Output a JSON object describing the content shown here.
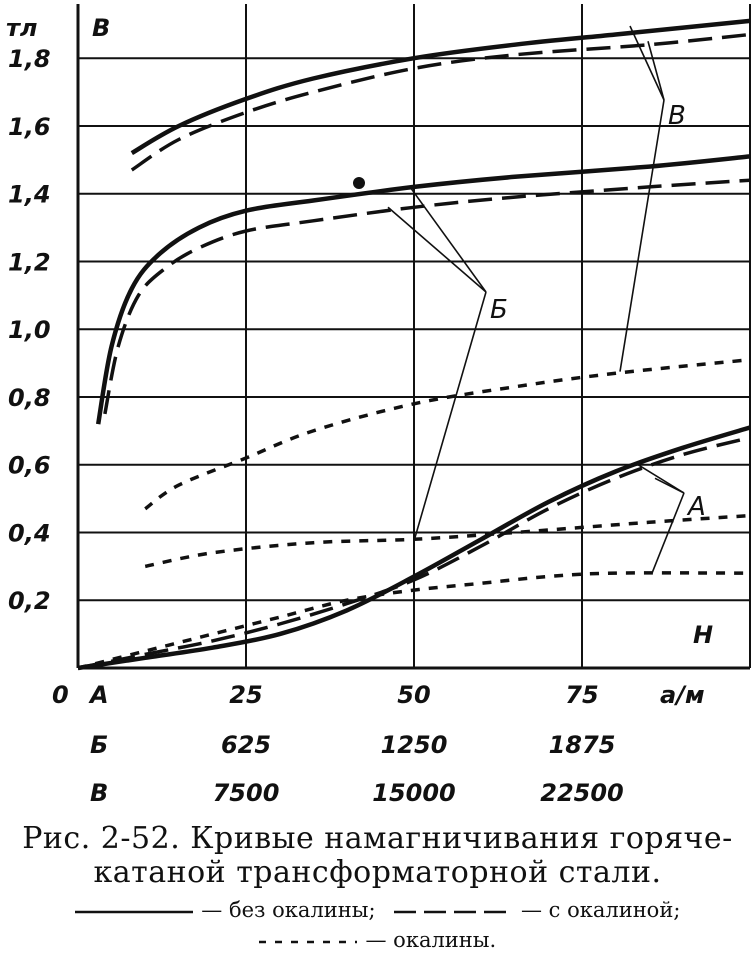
{
  "chart_data": {
    "type": "line",
    "y_unit": "тл",
    "y_axis_letter": "B",
    "x_axis_letter": "H",
    "x_unit": "а/м",
    "origin_label": "0",
    "ylim": [
      0,
      1.96
    ],
    "y_ticks": [
      "0,2",
      "0,4",
      "0,6",
      "0,8",
      "1,0",
      "1,2",
      "1,4",
      "1,6",
      "1,8"
    ],
    "x_scales": [
      {
        "name": "А",
        "ticks": [
          "25",
          "50",
          "75"
        ]
      },
      {
        "name": "Б",
        "ticks": [
          "625",
          "1250",
          "1875"
        ]
      },
      {
        "name": "В",
        "ticks": [
          "7500",
          "15000",
          "22500"
        ]
      }
    ],
    "grid": true,
    "curve_labels": [
      "В",
      "Б",
      "А"
    ],
    "series": [
      {
        "name": "без окалины",
        "group": "В",
        "style": "solid",
        "x": [
          8,
          15,
          25,
          35,
          50,
          65,
          80,
          100
        ],
        "y": [
          1.52,
          1.6,
          1.68,
          1.74,
          1.8,
          1.84,
          1.87,
          1.91
        ]
      },
      {
        "name": "с окалиной",
        "group": "В",
        "style": "dashed",
        "x": [
          8,
          15,
          25,
          35,
          50,
          65,
          85,
          100
        ],
        "y": [
          1.47,
          1.56,
          1.64,
          1.7,
          1.77,
          1.81,
          1.84,
          1.87
        ]
      },
      {
        "name": "окалины",
        "group": "В",
        "style": "dotted",
        "x": [
          10,
          15,
          25,
          35,
          50,
          65,
          80,
          100
        ],
        "y": [
          0.47,
          0.54,
          0.62,
          0.7,
          0.78,
          0.83,
          0.87,
          0.91
        ]
      },
      {
        "name": "без окалины",
        "group": "Б",
        "style": "solid",
        "x": [
          3,
          5,
          8,
          12,
          18,
          25,
          35,
          50,
          65,
          85,
          100
        ],
        "y": [
          0.72,
          0.95,
          1.12,
          1.22,
          1.3,
          1.35,
          1.38,
          1.42,
          1.45,
          1.48,
          1.51
        ]
      },
      {
        "name": "с окалиной",
        "group": "Б",
        "style": "dashed",
        "x": [
          4,
          6,
          9,
          13,
          18,
          25,
          35,
          50,
          65,
          85,
          100
        ],
        "y": [
          0.75,
          0.95,
          1.1,
          1.18,
          1.24,
          1.29,
          1.32,
          1.36,
          1.39,
          1.42,
          1.44
        ]
      },
      {
        "name": "окалины",
        "group": "Б",
        "style": "dotted",
        "x": [
          10,
          20,
          35,
          50,
          65,
          85,
          100
        ],
        "y": [
          0.3,
          0.34,
          0.37,
          0.38,
          0.4,
          0.43,
          0.45
        ]
      },
      {
        "name": "без окалины",
        "group": "А",
        "style": "solid",
        "x": [
          0,
          10,
          20,
          30,
          40,
          50,
          60,
          70,
          80,
          90,
          100
        ],
        "y": [
          0.0,
          0.03,
          0.06,
          0.1,
          0.17,
          0.27,
          0.38,
          0.49,
          0.58,
          0.65,
          0.71
        ]
      },
      {
        "name": "с окалиной",
        "group": "А",
        "style": "dashed",
        "x": [
          0,
          10,
          20,
          30,
          40,
          50,
          60,
          70,
          80,
          90,
          100
        ],
        "y": [
          0.0,
          0.04,
          0.08,
          0.13,
          0.19,
          0.26,
          0.36,
          0.47,
          0.56,
          0.63,
          0.68
        ]
      },
      {
        "name": "окалины",
        "group": "А",
        "style": "dotted",
        "x": [
          0,
          10,
          20,
          30,
          40,
          50,
          60,
          70,
          80,
          100
        ],
        "y": [
          0.0,
          0.05,
          0.1,
          0.15,
          0.2,
          0.23,
          0.25,
          0.27,
          0.28,
          0.28
        ]
      }
    ]
  },
  "caption": {
    "line1": "Рис. 2-52. Кривые намагничивания горяче-",
    "line2": "катаной трансформаторной стали."
  },
  "legend": {
    "solid": "— без окалины;",
    "dashed": "— с окалиной;",
    "dotted": "— окалины."
  }
}
